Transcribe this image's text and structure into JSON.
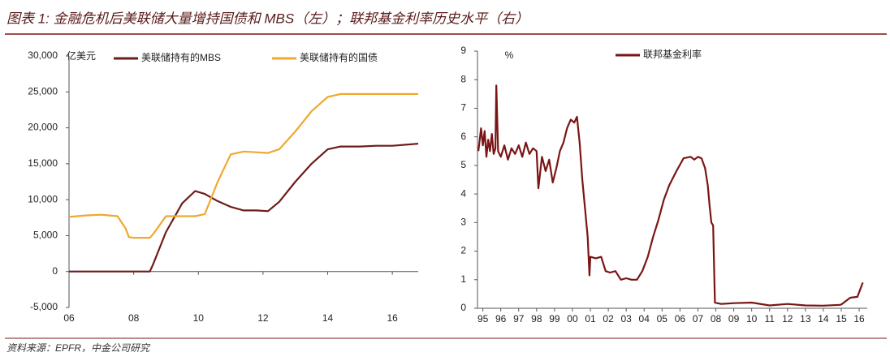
{
  "title": "图表 1: 金融危机后美联储大量增持国债和 MBS（左）；联邦基金利率历史水平（右）",
  "source": "资料来源：EPFR，中金公司研究",
  "chart_data": [
    {
      "type": "line",
      "y_label": "亿美元",
      "x": [
        2006,
        2006.5,
        2007,
        2007.5,
        2007.75,
        2007.85,
        2008,
        2008.5,
        2008.6,
        2009,
        2009.5,
        2009.9,
        2010.2,
        2010.6,
        2011,
        2011.4,
        2011.8,
        2012.15,
        2012.5,
        2013,
        2013.5,
        2014,
        2014.4,
        2015,
        2015.5,
        2016,
        2016.8
      ],
      "series": [
        {
          "name": "美联储持有的MBS",
          "color": "#6e1b1b",
          "values": [
            0,
            0,
            0,
            0,
            0,
            0,
            0,
            0,
            1000,
            5500,
            9500,
            11200,
            10800,
            9800,
            9000,
            8500,
            8500,
            8400,
            9700,
            12500,
            15000,
            17000,
            17400,
            17400,
            17500,
            17500,
            17800
          ]
        },
        {
          "name": "美联储持有的国债",
          "color": "#f0a830",
          "values": [
            7600,
            7800,
            7900,
            7700,
            6000,
            4800,
            4700,
            4700,
            5200,
            7700,
            7700,
            7700,
            8000,
            12500,
            16300,
            16700,
            16600,
            16500,
            17000,
            19500,
            22300,
            24300,
            24700,
            24700,
            24700,
            24700,
            24700
          ]
        }
      ],
      "xlim": [
        2006,
        2016.8
      ],
      "xticks": [
        {
          "value": 2006,
          "label": "06"
        },
        {
          "value": 2008,
          "label": "08"
        },
        {
          "value": 2010,
          "label": "10"
        },
        {
          "value": 2012,
          "label": "12"
        },
        {
          "value": 2014,
          "label": "14"
        },
        {
          "value": 2016,
          "label": "16"
        }
      ],
      "ylim": [
        -5000,
        30000
      ],
      "yticks": [
        {
          "value": -5000,
          "label": "-5,000"
        },
        0,
        {
          "value": 5000,
          "label": "5,000"
        },
        {
          "value": 10000,
          "label": "10,000"
        },
        {
          "value": 15000,
          "label": "15,000"
        },
        {
          "value": 20000,
          "label": "20,000"
        },
        {
          "value": 25000,
          "label": "25,000"
        },
        {
          "value": 30000,
          "label": "30,000"
        }
      ],
      "grid": false
    },
    {
      "type": "line",
      "y_label": "%",
      "x": [
        1994.75,
        1994.9,
        1995.0,
        1995.1,
        1995.2,
        1995.3,
        1995.4,
        1995.5,
        1995.6,
        1995.7,
        1995.75,
        1995.85,
        1996.0,
        1996.2,
        1996.4,
        1996.6,
        1996.8,
        1997.0,
        1997.2,
        1997.4,
        1997.6,
        1997.8,
        1998.0,
        1998.1,
        1998.3,
        1998.5,
        1998.7,
        1998.9,
        1999.1,
        1999.3,
        1999.5,
        1999.7,
        1999.9,
        2000.1,
        2000.25,
        2000.4,
        2000.55,
        2000.7,
        2000.85,
        2000.95,
        2001.0,
        2001.3,
        2001.6,
        2001.85,
        2002.1,
        2002.4,
        2002.7,
        2003.0,
        2003.3,
        2003.6,
        2003.9,
        2004.2,
        2004.5,
        2004.8,
        2005.1,
        2005.4,
        2005.8,
        2006.2,
        2006.6,
        2006.8,
        2007.0,
        2007.2,
        2007.4,
        2007.55,
        2007.65,
        2007.75,
        2007.85,
        2007.95,
        2008.3,
        2009.0,
        2010.0,
        2011.0,
        2012.0,
        2013.0,
        2014.0,
        2014.9,
        2015.0,
        2015.5,
        2015.9,
        2016.2
      ],
      "series": [
        {
          "name": "联邦基金利率",
          "color": "#7a1515",
          "values": [
            5.5,
            6.3,
            5.7,
            6.2,
            5.3,
            5.9,
            5.5,
            6.1,
            5.4,
            5.6,
            7.8,
            5.5,
            5.3,
            5.7,
            5.2,
            5.6,
            5.4,
            5.7,
            5.3,
            5.8,
            5.4,
            5.6,
            5.5,
            4.2,
            5.3,
            4.8,
            5.2,
            4.4,
            4.9,
            5.5,
            5.8,
            6.3,
            6.6,
            6.5,
            6.7,
            5.8,
            4.5,
            3.5,
            2.5,
            1.15,
            1.8,
            1.75,
            1.8,
            1.3,
            1.25,
            1.3,
            1.0,
            1.05,
            1.0,
            1.0,
            1.3,
            1.8,
            2.5,
            3.1,
            3.8,
            4.3,
            4.8,
            5.25,
            5.3,
            5.2,
            5.3,
            5.25,
            4.9,
            4.3,
            3.6,
            3.0,
            2.9,
            0.2,
            0.15,
            0.18,
            0.2,
            0.1,
            0.15,
            0.1,
            0.09,
            0.12,
            0.13,
            0.37,
            0.4,
            0.9
          ]
        }
      ],
      "xlim": [
        1994.7,
        2016.45
      ],
      "xticks": [
        {
          "value": 1995,
          "label": "95"
        },
        {
          "value": 1996,
          "label": "96"
        },
        {
          "value": 1997,
          "label": "97"
        },
        {
          "value": 1998,
          "label": "98"
        },
        {
          "value": 1999,
          "label": "99"
        },
        {
          "value": 2000,
          "label": "00"
        },
        {
          "value": 2001,
          "label": "01"
        },
        {
          "value": 2002,
          "label": "02"
        },
        {
          "value": 2003,
          "label": "03"
        },
        {
          "value": 2004,
          "label": "04"
        },
        {
          "value": 2005,
          "label": "05"
        },
        {
          "value": 2006,
          "label": "06"
        },
        {
          "value": 2007,
          "label": "07"
        },
        {
          "value": 2008,
          "label": "08"
        },
        {
          "value": 2009,
          "label": "09"
        },
        {
          "value": 2010,
          "label": "10"
        },
        {
          "value": 2011,
          "label": "11"
        },
        {
          "value": 2012,
          "label": "12"
        },
        {
          "value": 2013,
          "label": "13"
        },
        {
          "value": 2014,
          "label": "14"
        },
        {
          "value": 2015,
          "label": "15"
        },
        {
          "value": 2016,
          "label": "16"
        }
      ],
      "ylim": [
        0,
        9
      ],
      "yticks": [
        0,
        1,
        2,
        3,
        4,
        5,
        6,
        7,
        8,
        9
      ],
      "grid": false
    }
  ]
}
